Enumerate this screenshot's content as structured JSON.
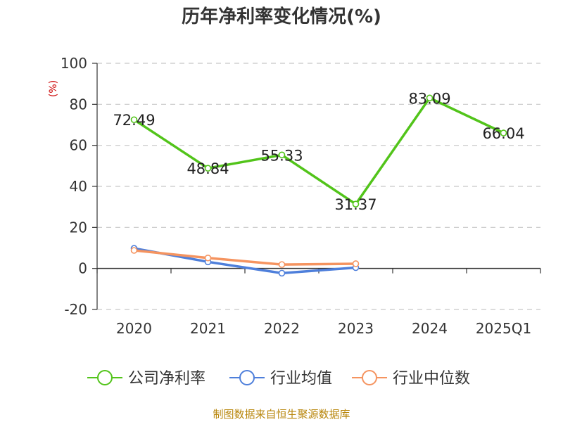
{
  "chart_data": {
    "type": "line",
    "title": "历年净利率变化情况(%)",
    "ylabel": "(%)",
    "categories": [
      "2020",
      "2021",
      "2022",
      "2023",
      "2024",
      "2025Q1"
    ],
    "ylim": [
      -20,
      100
    ],
    "yticks": [
      100,
      80,
      60,
      40,
      20,
      0,
      -20
    ],
    "grid": true,
    "legend_position": "bottom",
    "series": [
      {
        "name": "公司净利率",
        "color": "#52c41a",
        "values": [
          72.49,
          48.84,
          55.33,
          31.37,
          83.09,
          66.04
        ],
        "labels": [
          "72.49",
          "48.84",
          "55.33",
          "31.37",
          "83.09",
          "66.04"
        ]
      },
      {
        "name": "行业均值",
        "color": "#4e7fdb",
        "values": [
          9.8,
          3.2,
          -2.3,
          0.4,
          null,
          null
        ],
        "labels": []
      },
      {
        "name": "行业中位数",
        "color": "#f59460",
        "values": [
          8.8,
          5.1,
          1.9,
          2.3,
          null,
          null
        ],
        "labels": []
      }
    ]
  },
  "source": "制图数据来自恒生聚源数据库"
}
